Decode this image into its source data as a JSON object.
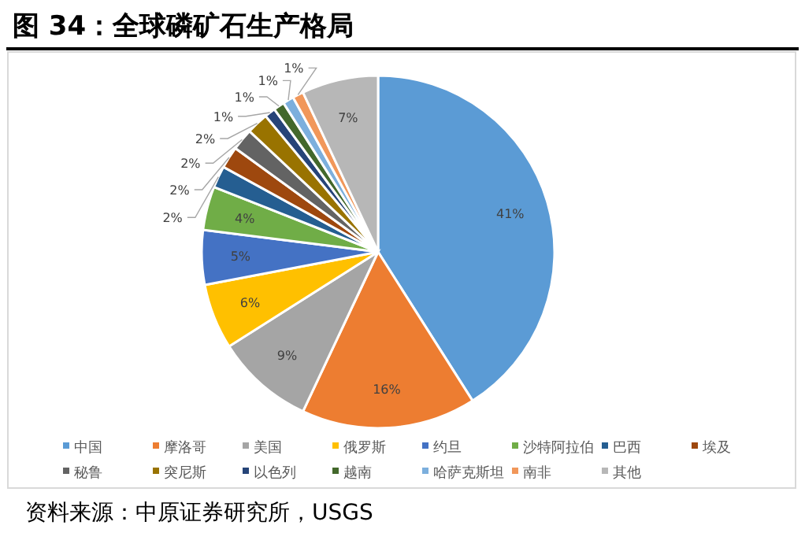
{
  "chart_data": {
    "type": "pie",
    "title": "图 34：全球磷矿石生产格局",
    "categories": [
      "中国",
      "摩洛哥",
      "美国",
      "俄罗斯",
      "约旦",
      "沙特阿拉伯",
      "巴西",
      "埃及",
      "秘鲁",
      "突尼斯",
      "以色列",
      "越南",
      "哈萨克斯坦",
      "南非",
      "其他"
    ],
    "values": [
      41,
      16,
      9,
      6,
      5,
      4,
      2,
      2,
      2,
      2,
      1,
      1,
      1,
      1,
      7
    ],
    "colors": [
      "#5b9bd5",
      "#ed7d31",
      "#a5a5a5",
      "#ffc000",
      "#4472c4",
      "#70ad47",
      "#255e91",
      "#9e480e",
      "#636363",
      "#997300",
      "#264478",
      "#43682b",
      "#7cafdd",
      "#f1975a",
      "#b7b7b7"
    ],
    "value_labels": [
      "41%",
      "16%",
      "9%",
      "6%",
      "5%",
      "4%",
      "2%",
      "2%",
      "2%",
      "2%",
      "1%",
      "1%",
      "1%",
      "1%",
      "7%"
    ],
    "legend": "bottom",
    "annotations": [
      "资料来源：中原证券研究所，USGS"
    ]
  }
}
